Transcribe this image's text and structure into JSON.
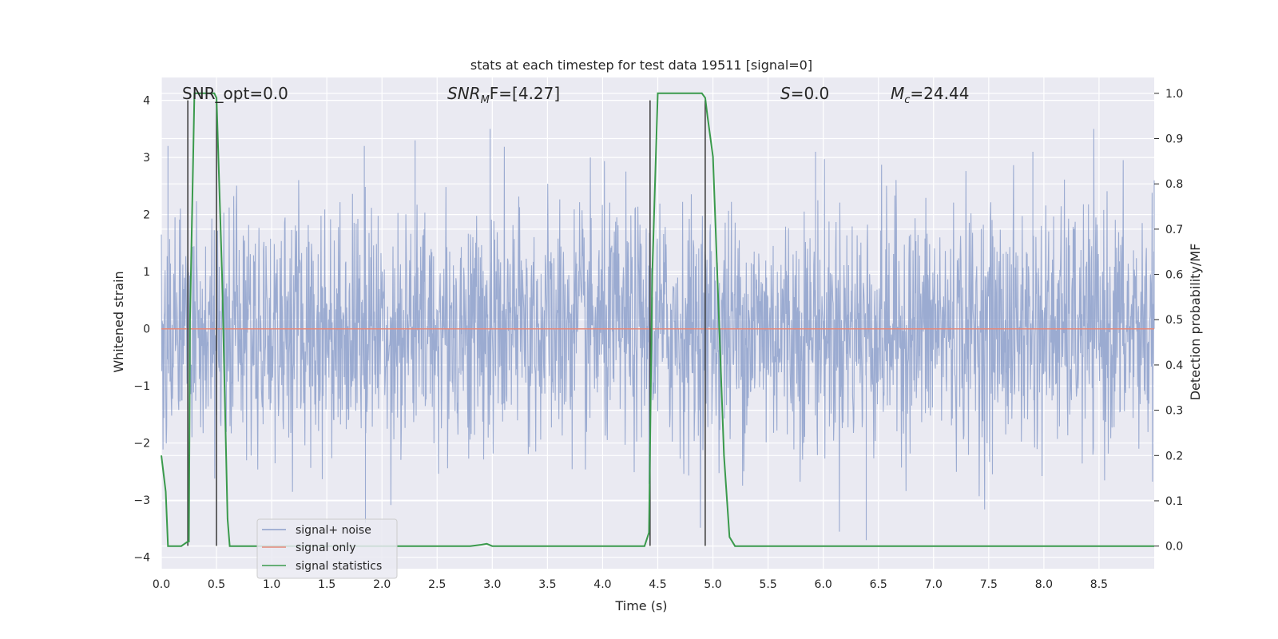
{
  "chart_data": {
    "type": "line",
    "title": "stats at each timestep for test data 19511 [signal=0]",
    "xlabel": "Time (s)",
    "ylabel": "Whitened strain",
    "y2label": "Detection probability/MF",
    "xlim": [
      0.0,
      9.0
    ],
    "ylim": [
      -4.2,
      4.4
    ],
    "y2lim": [
      -0.05,
      1.035
    ],
    "xticks": [
      "0.0",
      "0.5",
      "1.0",
      "1.5",
      "2.0",
      "2.5",
      "3.0",
      "3.5",
      "4.0",
      "4.5",
      "5.0",
      "5.5",
      "6.0",
      "6.5",
      "7.0",
      "7.5",
      "8.0",
      "8.5"
    ],
    "yticks": [
      "4",
      "3",
      "2",
      "1",
      "0",
      "−1",
      "−2",
      "−3",
      "−4"
    ],
    "y2ticks": [
      "1.0",
      "0.9",
      "0.8",
      "0.7",
      "0.6",
      "0.5",
      "0.4",
      "0.3",
      "0.2",
      "0.1",
      "0.0"
    ],
    "grid": true,
    "legend_position": "lower-left",
    "annotations": {
      "snr_opt": "SNR_opt=0.0",
      "snr_mf_main": "SNR",
      "snr_mf_sub": "M",
      "snr_mf_rest": "F=[4.27]",
      "s_main": "S",
      "s_rest": "=0.0",
      "mc_main": "M",
      "mc_sub": "c",
      "mc_rest": "=24.44"
    },
    "series": [
      {
        "name": "signal+ noise",
        "color": "#8da0cb",
        "kind": "noise",
        "amplitude_range": [
          -3.7,
          3.5
        ],
        "typical_envelope": [
          -2.5,
          2.5
        ],
        "outlier_peaks": [
          [
            0.06,
            3.2
          ],
          [
            1.84,
            3.2
          ],
          [
            2.3,
            3.3
          ],
          [
            2.98,
            3.5
          ],
          [
            6.39,
            -3.7
          ],
          [
            1.85,
            -3.4
          ],
          [
            7.9,
            3.1
          ],
          [
            5.93,
            3.1
          ],
          [
            9.0,
            2.6
          ]
        ]
      },
      {
        "name": "signal only",
        "color": "#e5897a",
        "kind": "line",
        "points": [
          [
            0.0,
            0.0
          ],
          [
            9.0,
            0.0
          ]
        ]
      },
      {
        "name": "signal statistics",
        "color": "#3a9a4c",
        "axis": "right",
        "points": [
          [
            0.0,
            0.2
          ],
          [
            0.04,
            0.12
          ],
          [
            0.06,
            0.0
          ],
          [
            0.18,
            0.0
          ],
          [
            0.24,
            0.01
          ],
          [
            0.25,
            0.01
          ],
          [
            0.26,
            0.5
          ],
          [
            0.3,
            1.0
          ],
          [
            0.48,
            1.0
          ],
          [
            0.5,
            0.99
          ],
          [
            0.55,
            0.6
          ],
          [
            0.6,
            0.06
          ],
          [
            0.62,
            0.0
          ],
          [
            0.75,
            0.0
          ],
          [
            0.85,
            0.0
          ],
          [
            1.0,
            0.0
          ],
          [
            1.5,
            0.0
          ],
          [
            2.0,
            0.0
          ],
          [
            2.5,
            0.0
          ],
          [
            2.8,
            0.0
          ],
          [
            2.9,
            0.003
          ],
          [
            2.95,
            0.005
          ],
          [
            3.0,
            0.0
          ],
          [
            3.5,
            0.0
          ],
          [
            4.0,
            0.0
          ],
          [
            4.38,
            0.0
          ],
          [
            4.42,
            0.03
          ],
          [
            4.45,
            0.6
          ],
          [
            4.5,
            1.0
          ],
          [
            4.9,
            1.0
          ],
          [
            4.93,
            0.99
          ],
          [
            4.95,
            0.95
          ],
          [
            5.0,
            0.86
          ],
          [
            5.1,
            0.2
          ],
          [
            5.15,
            0.02
          ],
          [
            5.2,
            0.0
          ],
          [
            5.5,
            0.0
          ],
          [
            6.0,
            0.0
          ],
          [
            7.0,
            0.0
          ],
          [
            8.0,
            0.0
          ],
          [
            8.5,
            0.0
          ],
          [
            9.0,
            0.0
          ]
        ]
      }
    ],
    "vertical_markers": [
      {
        "x": 0.24,
        "ymin": -3.8,
        "ymax": 4.0,
        "color": "#444444"
      },
      {
        "x": 0.5,
        "ymin": -3.8,
        "ymax": 4.0,
        "color": "#444444"
      },
      {
        "x": 4.43,
        "ymin": -3.8,
        "ymax": 4.0,
        "color": "#444444"
      },
      {
        "x": 4.93,
        "ymin": -3.8,
        "ymax": 4.0,
        "color": "#444444"
      }
    ],
    "colors": {
      "background": "#eaeaf2",
      "grid": "#ffffff",
      "noise": "#8da0cb",
      "signal_only": "#e5897a",
      "stats": "#3a9a4c",
      "marker": "#444444"
    }
  }
}
